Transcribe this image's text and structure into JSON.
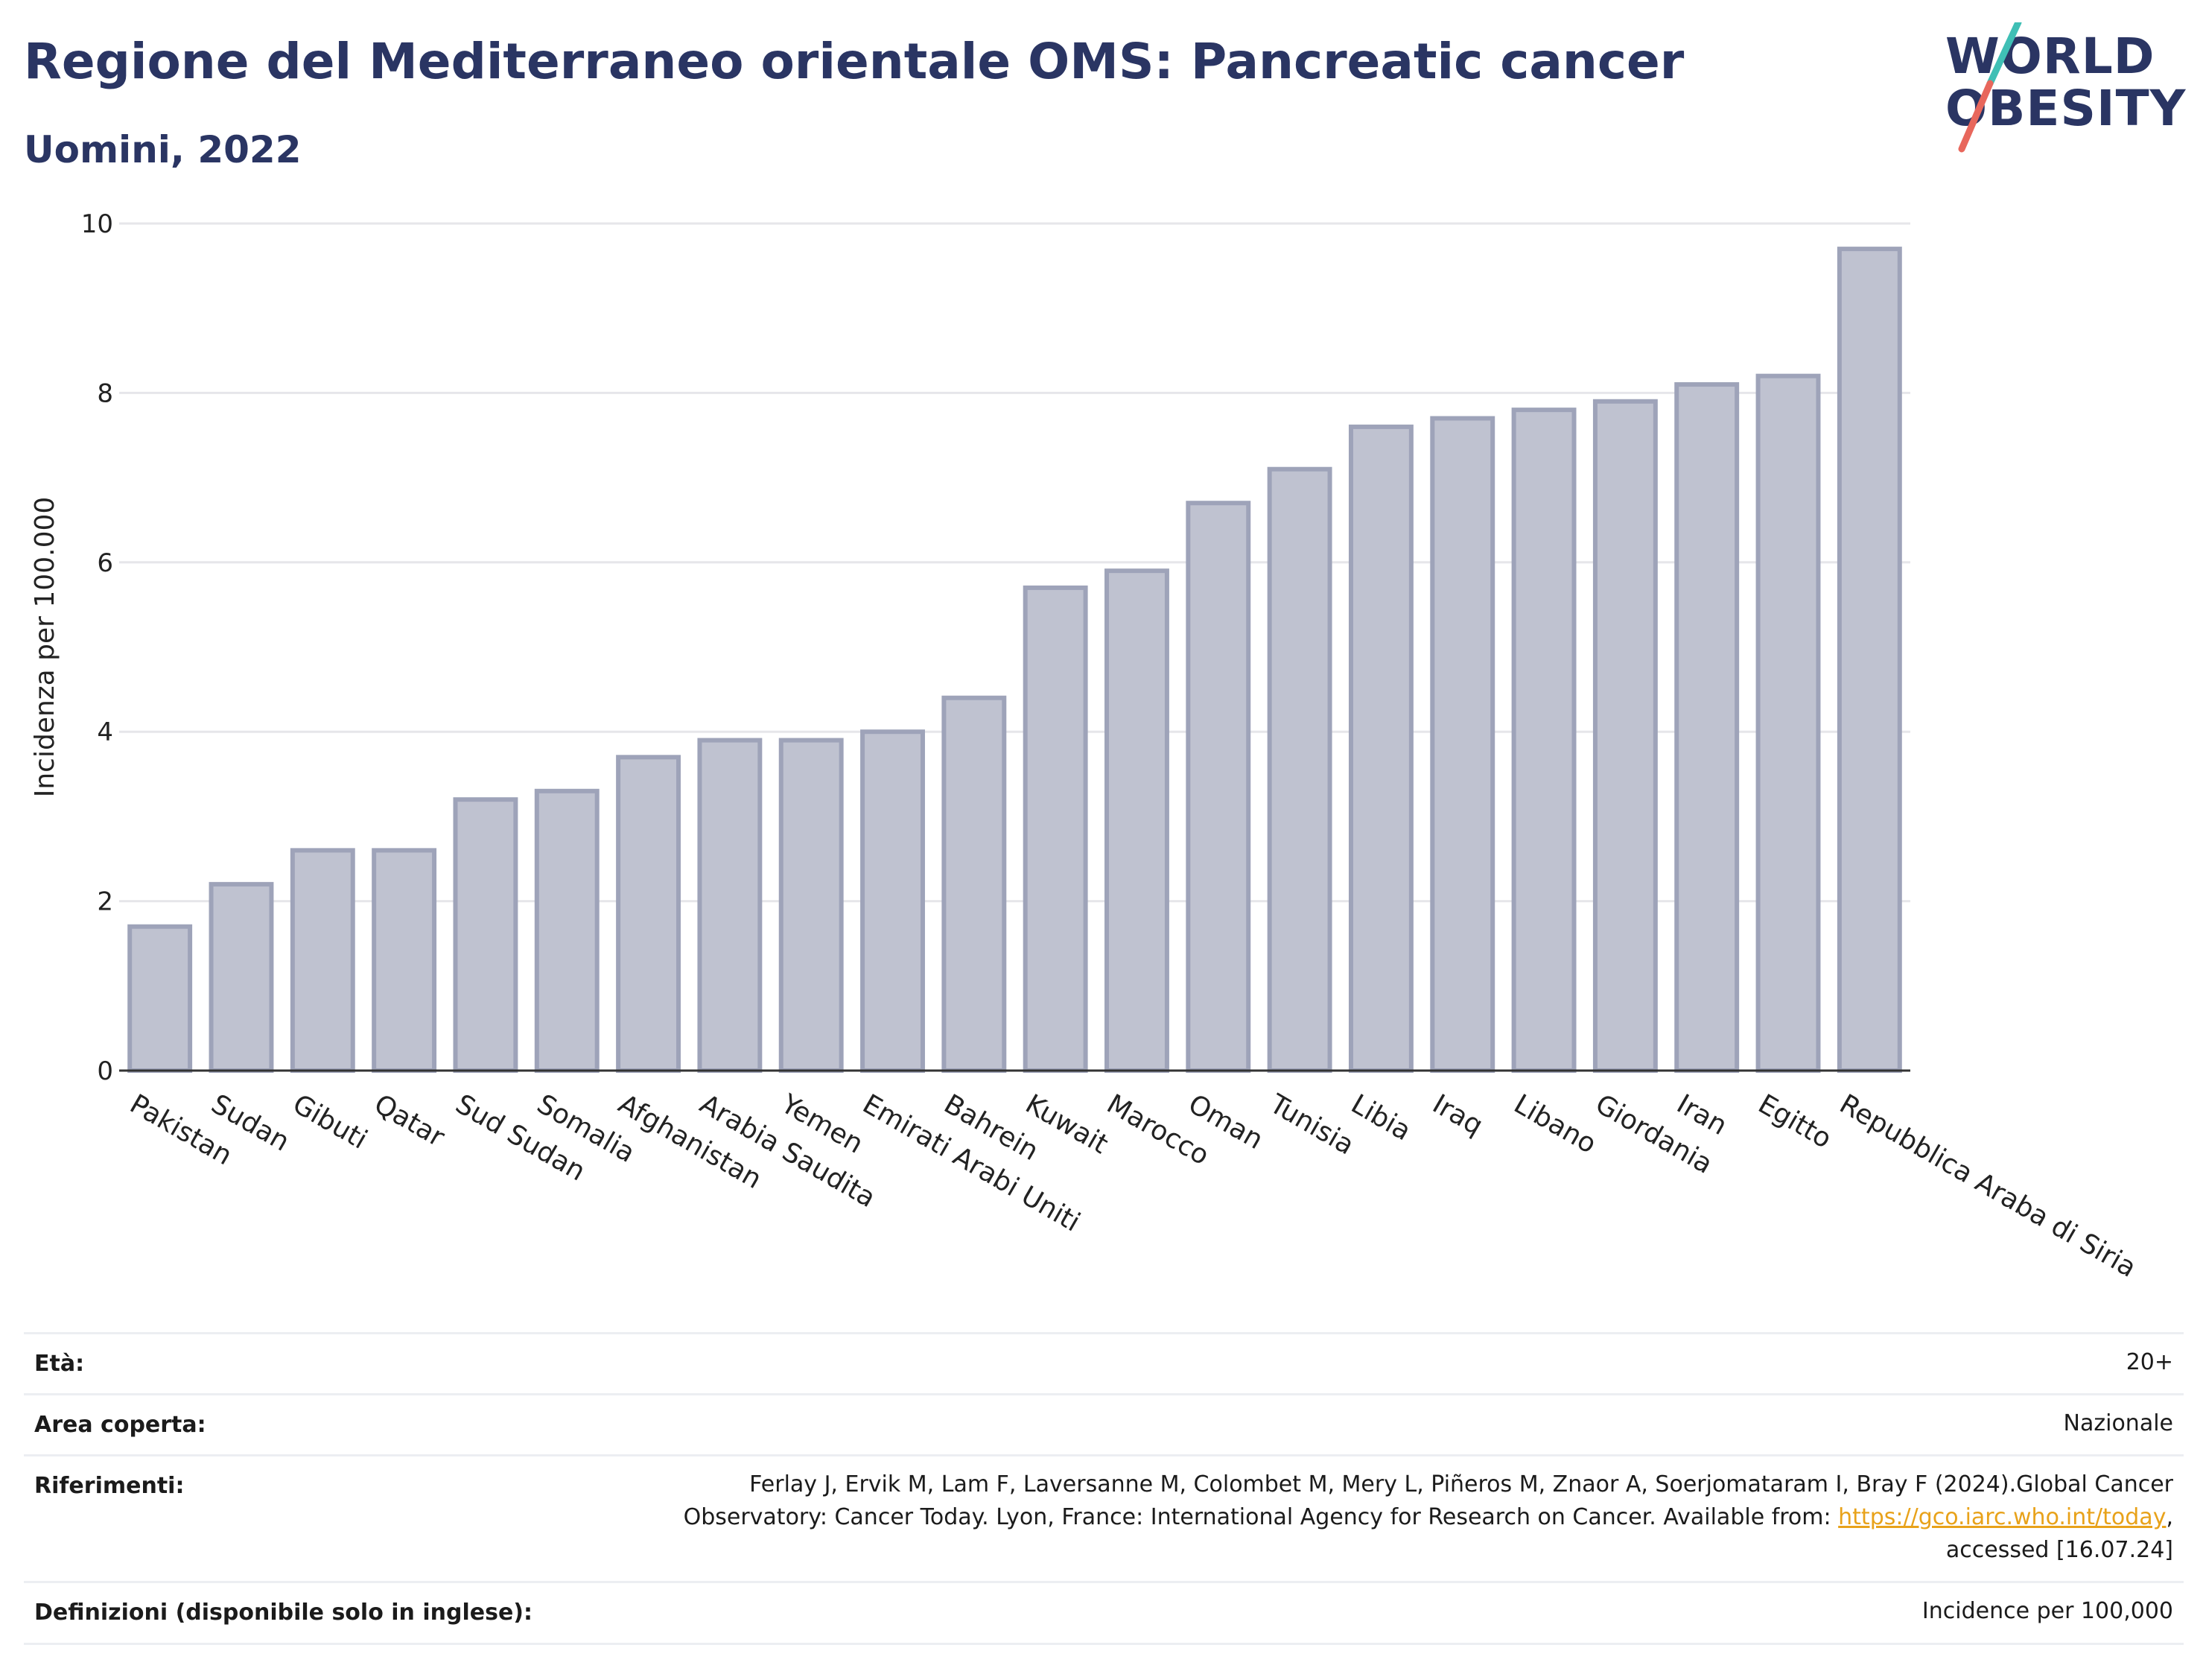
{
  "header": {
    "title": "Regione del Mediterraneo orientale OMS: Pancreatic cancer",
    "subtitle": "Uomini, 2022"
  },
  "logo": {
    "line1": "WORLD",
    "line2": "OBESITY",
    "slash_colors": [
      "#3fbfb5",
      "#e8675c"
    ]
  },
  "chart_data": {
    "type": "bar",
    "title": "Regione del Mediterraneo orientale OMS: Pancreatic cancer",
    "subtitle": "Uomini, 2022",
    "xlabel": "",
    "ylabel": "Incidenza per 100.000",
    "ylim": [
      0,
      10
    ],
    "yticks": [
      "0",
      "2",
      "4",
      "6",
      "8",
      "10"
    ],
    "grid": true,
    "bar_color": "#bfc2d0",
    "categories": [
      "Pakistan",
      "Sudan",
      "Gibuti",
      "Qatar",
      "Sud Sudan",
      "Somalia",
      "Afghanistan",
      "Arabia Saudita",
      "Yemen",
      "Emirati Arabi Uniti",
      "Bahrein",
      "Kuwait",
      "Marocco",
      "Oman",
      "Tunisia",
      "Libia",
      "Iraq",
      "Libano",
      "Giordania",
      "Iran",
      "Egitto",
      "Repubblica Araba di Siria"
    ],
    "values": [
      1.7,
      2.2,
      2.6,
      2.6,
      3.2,
      3.3,
      3.7,
      3.9,
      3.9,
      4.0,
      4.4,
      5.7,
      5.9,
      6.7,
      7.1,
      7.6,
      7.7,
      7.8,
      7.9,
      8.1,
      8.2,
      9.7
    ]
  },
  "meta": {
    "age_label": "Età:",
    "age_value": "20+",
    "area_label": "Area coperta:",
    "area_value": "Nazionale",
    "refs_label": "Riferimenti:",
    "refs_line1": "Ferlay J, Ervik M, Lam F, Laversanne M, Colombet M, Mery L, Piñeros M, Znaor A, Soerjomataram I, Bray F (2024).Global Cancer",
    "refs_line2": "Observatory: Cancer Today. Lyon, France: International Agency for Research on Cancer. Available from: ",
    "refs_link": "https://gco.iarc.who.int/today",
    "refs_line2_end": ",",
    "refs_line3": "accessed [16.07.24]",
    "def_label": "Definizioni (disponibile solo in inglese):",
    "def_value": "Incidence per 100,000"
  }
}
